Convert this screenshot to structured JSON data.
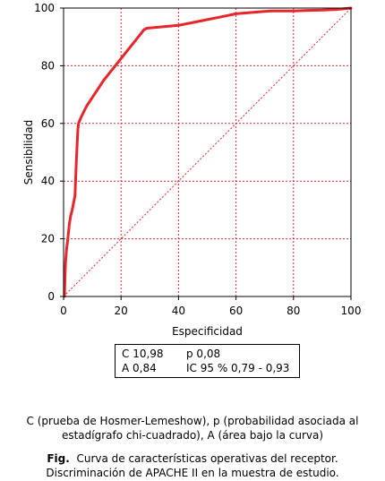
{
  "chart_data": {
    "type": "line",
    "xlabel": "Especificidad",
    "ylabel": "Sensibilidad",
    "xlim": [
      0,
      100
    ],
    "ylim": [
      0,
      100
    ],
    "xticks": [
      0,
      20,
      40,
      60,
      80,
      100
    ],
    "yticks": [
      0,
      20,
      40,
      60,
      80,
      100
    ],
    "grid": true,
    "diagonal_reference": [
      [
        0,
        0
      ],
      [
        100,
        100
      ]
    ],
    "series": [
      {
        "color": "#e8252a",
        "x": [
          0.3,
          0.5,
          0.7,
          1,
          1.5,
          2,
          2.5,
          3,
          4,
          4.5,
          5,
          5.2,
          6,
          8,
          10,
          14,
          18,
          22,
          26,
          28,
          29,
          32,
          40,
          45,
          50,
          55,
          60,
          66,
          72,
          80,
          85,
          90,
          95,
          98,
          100
        ],
        "y": [
          0,
          7,
          12,
          16,
          20,
          25,
          28,
          30,
          35,
          48,
          58,
          60,
          62,
          66,
          69,
          75,
          80,
          85,
          90,
          92.5,
          93,
          93.3,
          94,
          95,
          96,
          97,
          98,
          98.5,
          99,
          99,
          99.2,
          99.3,
          99.5,
          99.8,
          100
        ]
      }
    ]
  },
  "stats": {
    "c_value": "C 10,98",
    "p_value": "p 0,08",
    "a_value": "A 0,84",
    "ic_value": "IC 95 % 0,79 - 0,93"
  },
  "note": {
    "line1": "C (prueba de Hosmer-Lemeshow), p (probabilidad asociada al",
    "line2": "estadígrafo chi-cuadrado), A (área bajo la curva)"
  },
  "caption": {
    "label": "Fig.",
    "line1": "Curva de características operativas del receptor.",
    "line2": "Discriminación de APACHE II en la muestra de estudio."
  }
}
